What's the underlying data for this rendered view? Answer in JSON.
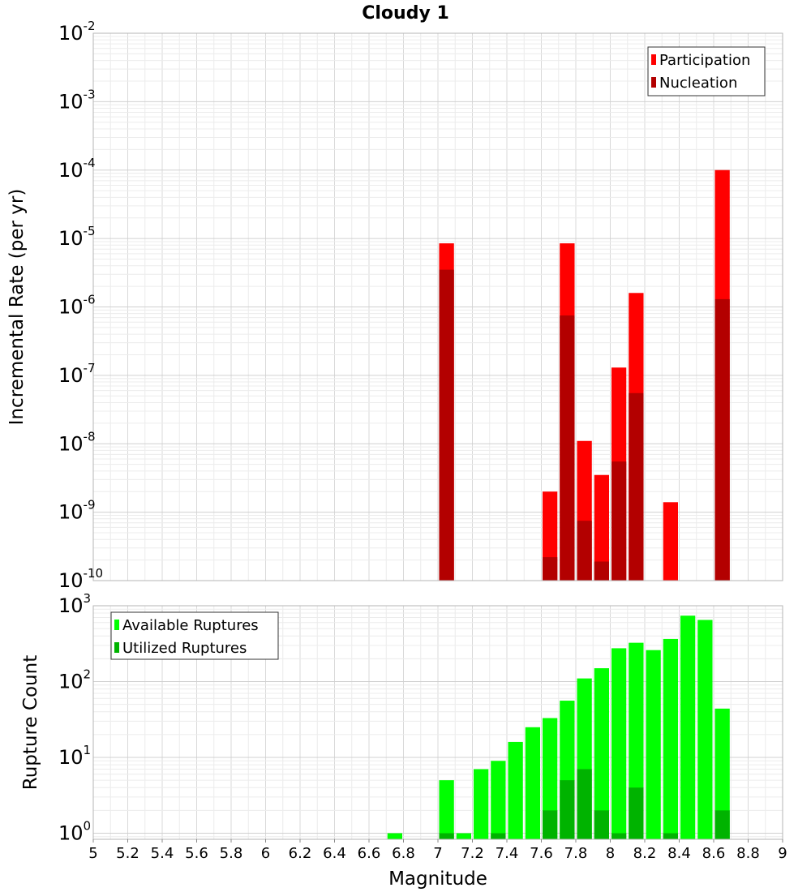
{
  "title": "Cloudy 1",
  "chart_data": [
    {
      "type": "bar",
      "scale": "log",
      "ylabel": "Incremental Rate (per yr)",
      "xlabel": "",
      "xlim": [
        5,
        9
      ],
      "ylim_exp": [
        -10,
        -2
      ],
      "ytick_exps": [
        -10,
        -9,
        -8,
        -7,
        -6,
        -5,
        -4,
        -3,
        -2
      ],
      "legend_position": "top-right",
      "grid": true,
      "series": [
        {
          "name": "Participation",
          "color": "#ff0000",
          "points": [
            {
              "x": 7.05,
              "y": 8.5e-06
            },
            {
              "x": 7.65,
              "y": 2e-09
            },
            {
              "x": 7.75,
              "y": 8.5e-06
            },
            {
              "x": 7.85,
              "y": 1.1e-08
            },
            {
              "x": 7.95,
              "y": 3.5e-09
            },
            {
              "x": 8.05,
              "y": 1.3e-07
            },
            {
              "x": 8.15,
              "y": 1.6e-06
            },
            {
              "x": 8.35,
              "y": 1.4e-09
            },
            {
              "x": 8.65,
              "y": 0.0001
            }
          ]
        },
        {
          "name": "Nucleation",
          "color": "#b30000",
          "points": [
            {
              "x": 7.05,
              "y": 3.5e-06
            },
            {
              "x": 7.65,
              "y": 2.2e-10
            },
            {
              "x": 7.75,
              "y": 7.5e-07
            },
            {
              "x": 7.85,
              "y": 7.5e-10
            },
            {
              "x": 7.95,
              "y": 1.9e-10
            },
            {
              "x": 8.05,
              "y": 5.5e-09
            },
            {
              "x": 8.15,
              "y": 5.5e-08
            },
            {
              "x": 8.65,
              "y": 1.3e-06
            }
          ]
        }
      ]
    },
    {
      "type": "bar",
      "scale": "log",
      "ylabel": "Rupture Count",
      "xlabel": "Magnitude",
      "xlim": [
        5,
        9
      ],
      "ylim_exp": [
        -0.08,
        3
      ],
      "ytick_exps": [
        0,
        1,
        2,
        3
      ],
      "xticks": [
        "5",
        "5.2",
        "5.4",
        "5.6",
        "5.8",
        "6",
        "6.2",
        "6.4",
        "6.6",
        "6.8",
        "7",
        "7.2",
        "7.4",
        "7.6",
        "7.8",
        "8",
        "8.2",
        "8.4",
        "8.6",
        "8.8",
        "9"
      ],
      "legend_position": "top-left",
      "grid": true,
      "series": [
        {
          "name": "Available Ruptures",
          "color": "#00ff00",
          "points": [
            {
              "x": 6.75,
              "y": 1
            },
            {
              "x": 7.05,
              "y": 5
            },
            {
              "x": 7.15,
              "y": 1
            },
            {
              "x": 7.25,
              "y": 7
            },
            {
              "x": 7.35,
              "y": 9
            },
            {
              "x": 7.45,
              "y": 16
            },
            {
              "x": 7.55,
              "y": 25
            },
            {
              "x": 7.65,
              "y": 33
            },
            {
              "x": 7.75,
              "y": 56
            },
            {
              "x": 7.85,
              "y": 110
            },
            {
              "x": 7.95,
              "y": 150
            },
            {
              "x": 8.05,
              "y": 275
            },
            {
              "x": 8.15,
              "y": 325
            },
            {
              "x": 8.25,
              "y": 260
            },
            {
              "x": 8.35,
              "y": 365
            },
            {
              "x": 8.45,
              "y": 740
            },
            {
              "x": 8.55,
              "y": 650
            },
            {
              "x": 8.65,
              "y": 44
            }
          ]
        },
        {
          "name": "Utilized Ruptures",
          "color": "#00b300",
          "points": [
            {
              "x": 7.05,
              "y": 1
            },
            {
              "x": 7.35,
              "y": 1
            },
            {
              "x": 7.65,
              "y": 2
            },
            {
              "x": 7.75,
              "y": 5
            },
            {
              "x": 7.85,
              "y": 7
            },
            {
              "x": 7.95,
              "y": 2
            },
            {
              "x": 8.05,
              "y": 1
            },
            {
              "x": 8.15,
              "y": 4
            },
            {
              "x": 8.35,
              "y": 1
            },
            {
              "x": 8.65,
              "y": 2
            }
          ]
        }
      ]
    }
  ]
}
